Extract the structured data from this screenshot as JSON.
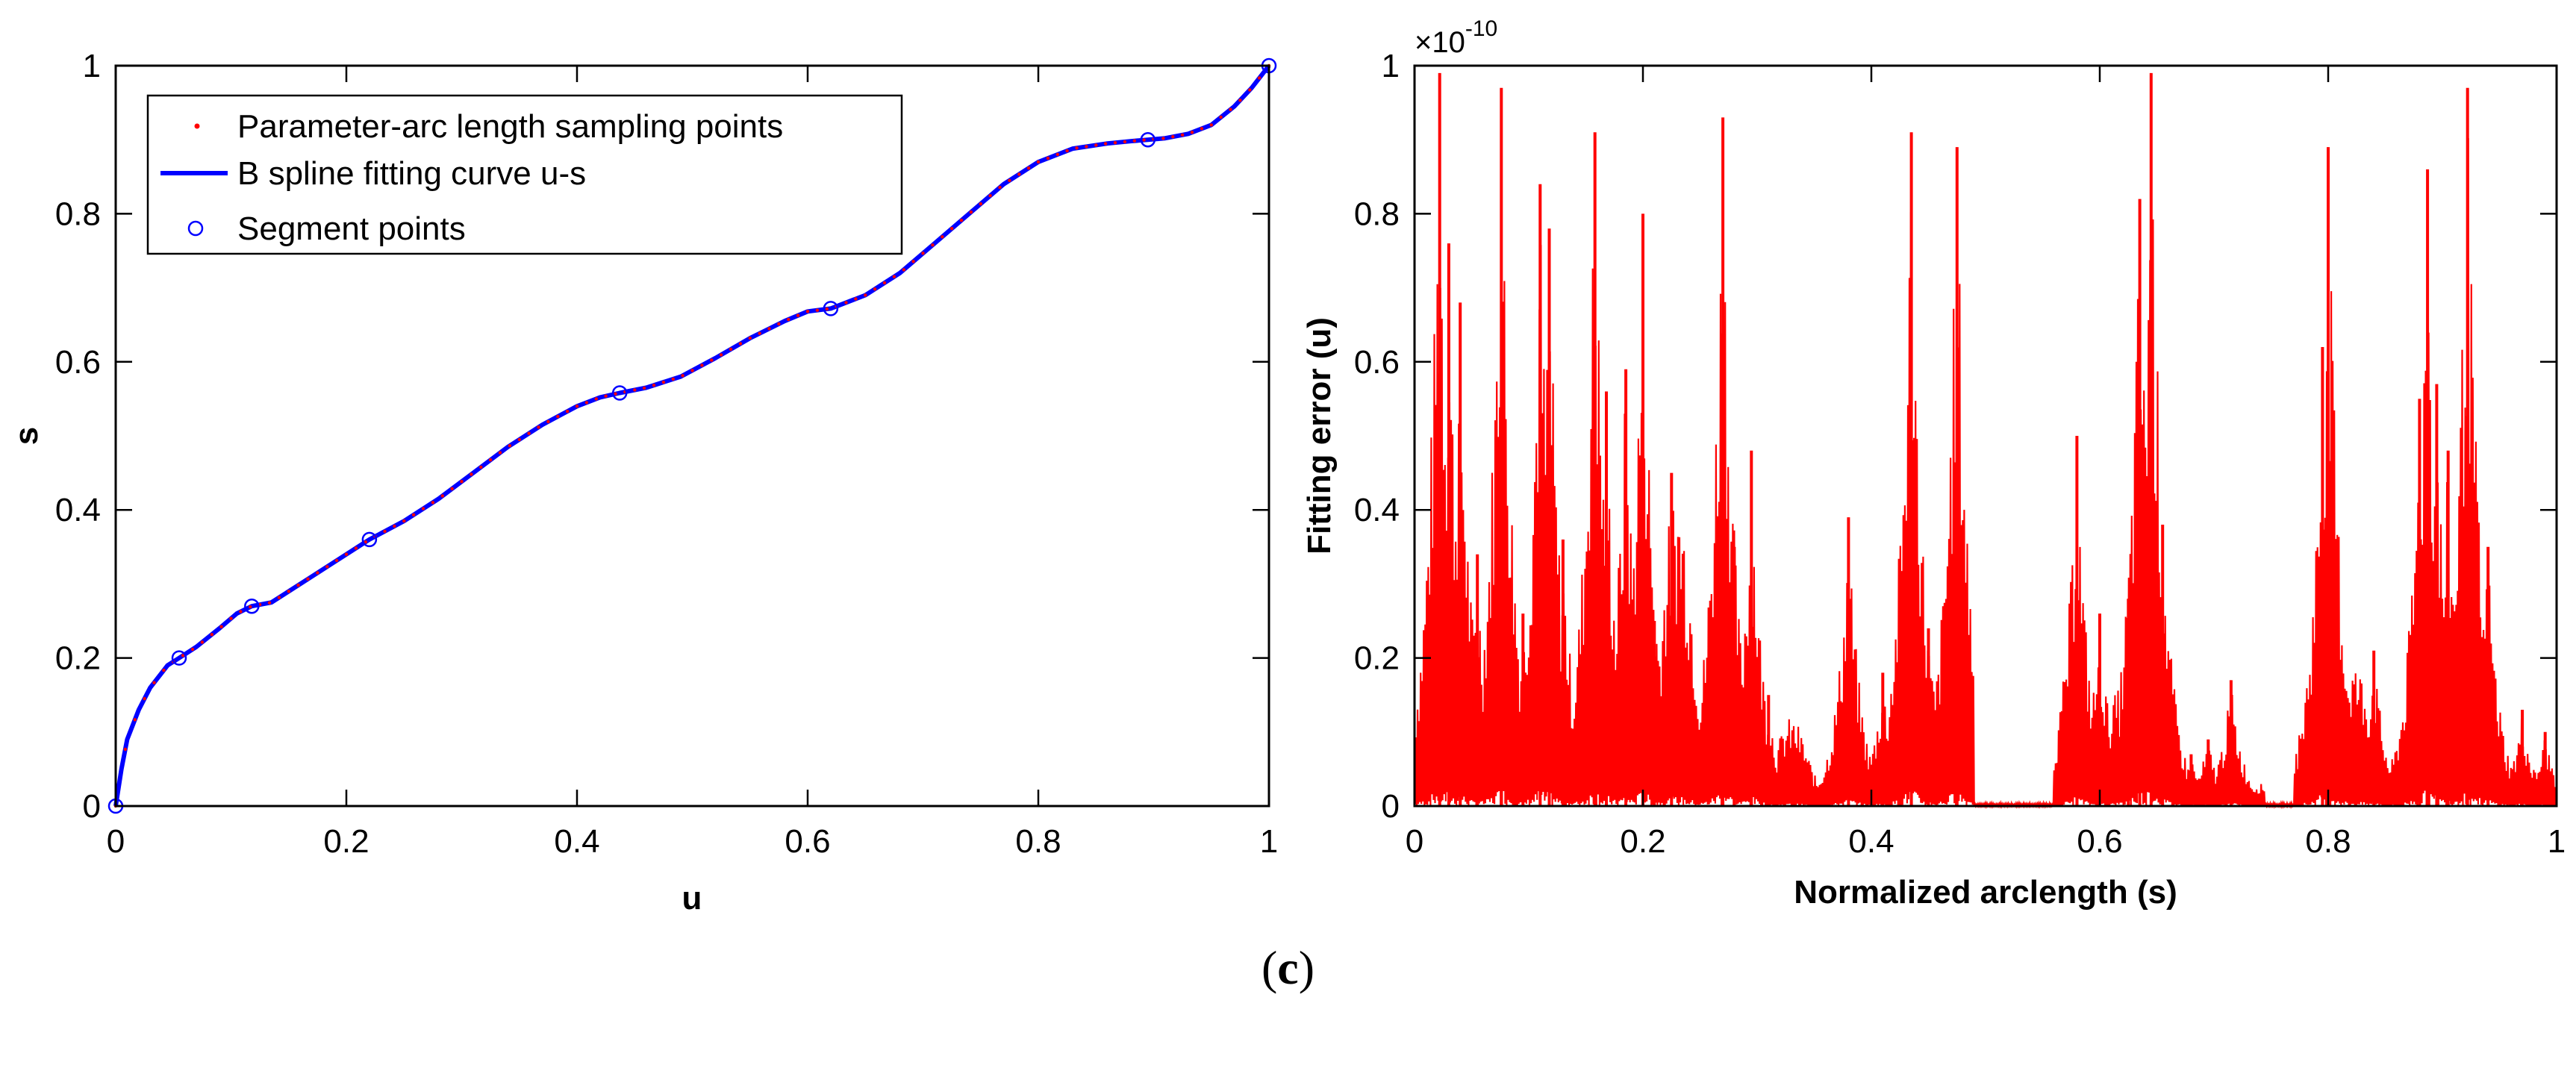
{
  "caption": {
    "open": "(",
    "label": "c",
    "close": ")"
  },
  "colors": {
    "sampling": "#ff0000",
    "curve": "#0000ff",
    "segment": "#0000ff",
    "error": "#ff0000",
    "axis": "#000000"
  },
  "chart_data": [
    {
      "type": "line",
      "title": "",
      "xlabel": "u",
      "ylabel": "s",
      "xlim": [
        0,
        1
      ],
      "ylim": [
        0,
        1
      ],
      "xticks": [
        0,
        0.2,
        0.4,
        0.6,
        0.8,
        1
      ],
      "yticks": [
        0,
        0.2,
        0.4,
        0.6,
        0.8,
        1
      ],
      "xtick_labels": [
        "0",
        "0.2",
        "0.4",
        "0.6",
        "0.8",
        "1"
      ],
      "ytick_labels": [
        "0",
        "0.2",
        "0.4",
        "0.6",
        "0.8",
        "1"
      ],
      "legend": {
        "placement": "top-left",
        "entries": [
          "Parameter-arc length sampling points",
          "B spline fitting curve u-s",
          "Segment points"
        ]
      },
      "series": [
        {
          "name": "B spline fitting curve u-s",
          "style": "line",
          "x": [
            0,
            0.005,
            0.01,
            0.02,
            0.03,
            0.045,
            0.055,
            0.07,
            0.09,
            0.105,
            0.118,
            0.135,
            0.15,
            0.17,
            0.19,
            0.21,
            0.22,
            0.25,
            0.28,
            0.31,
            0.34,
            0.37,
            0.4,
            0.42,
            0.437,
            0.46,
            0.49,
            0.52,
            0.55,
            0.58,
            0.6,
            0.62,
            0.65,
            0.68,
            0.71,
            0.74,
            0.77,
            0.8,
            0.83,
            0.86,
            0.88,
            0.895,
            0.91,
            0.93,
            0.95,
            0.97,
            0.985,
            1.0
          ],
          "y": [
            0,
            0.05,
            0.09,
            0.13,
            0.16,
            0.19,
            0.2,
            0.215,
            0.24,
            0.26,
            0.27,
            0.275,
            0.29,
            0.31,
            0.33,
            0.35,
            0.36,
            0.385,
            0.415,
            0.45,
            0.485,
            0.515,
            0.54,
            0.552,
            0.558,
            0.565,
            0.58,
            0.605,
            0.632,
            0.655,
            0.668,
            0.672,
            0.69,
            0.72,
            0.76,
            0.8,
            0.84,
            0.87,
            0.888,
            0.895,
            0.898,
            0.9,
            0.902,
            0.908,
            0.92,
            0.945,
            0.97,
            1.0
          ]
        },
        {
          "name": "Segment points",
          "style": "marker-circle",
          "x": [
            0,
            0.055,
            0.118,
            0.22,
            0.437,
            0.62,
            0.895,
            1.0
          ],
          "y": [
            0,
            0.2,
            0.27,
            0.36,
            0.558,
            0.672,
            0.9,
            1.0
          ]
        }
      ]
    },
    {
      "type": "area",
      "title": "",
      "xlabel": "Normalized arclength (s)",
      "ylabel": "Fitting error (u)",
      "y_exponent_label": "×10",
      "y_exponent_power": "-10",
      "xlim": [
        0,
        1
      ],
      "ylim": [
        0,
        1
      ],
      "xticks": [
        0,
        0.2,
        0.4,
        0.6,
        0.8,
        1
      ],
      "yticks": [
        0,
        0.2,
        0.4,
        0.6,
        0.8,
        1
      ],
      "xtick_labels": [
        "0",
        "0.2",
        "0.4",
        "0.6",
        "0.8",
        "1"
      ],
      "ytick_labels": [
        "0",
        "0.2",
        "0.4",
        "0.6",
        "0.8",
        "1"
      ],
      "series": [
        {
          "name": "Fitting error",
          "spikes": [
            {
              "x": 0.022,
              "y": 0.99
            },
            {
              "x": 0.03,
              "y": 0.76
            },
            {
              "x": 0.04,
              "y": 0.68
            },
            {
              "x": 0.055,
              "y": 0.34
            },
            {
              "x": 0.076,
              "y": 0.97
            },
            {
              "x": 0.095,
              "y": 0.26
            },
            {
              "x": 0.11,
              "y": 0.84
            },
            {
              "x": 0.118,
              "y": 0.78
            },
            {
              "x": 0.13,
              "y": 0.36
            },
            {
              "x": 0.158,
              "y": 0.91
            },
            {
              "x": 0.168,
              "y": 0.56
            },
            {
              "x": 0.185,
              "y": 0.59
            },
            {
              "x": 0.2,
              "y": 0.8
            },
            {
              "x": 0.21,
              "y": 0.25
            },
            {
              "x": 0.225,
              "y": 0.45
            },
            {
              "x": 0.27,
              "y": 0.93
            },
            {
              "x": 0.28,
              "y": 0.35
            },
            {
              "x": 0.295,
              "y": 0.48
            },
            {
              "x": 0.31,
              "y": 0.15
            },
            {
              "x": 0.38,
              "y": 0.39
            },
            {
              "x": 0.41,
              "y": 0.18
            },
            {
              "x": 0.435,
              "y": 0.91
            },
            {
              "x": 0.45,
              "y": 0.24
            },
            {
              "x": 0.475,
              "y": 0.89
            },
            {
              "x": 0.58,
              "y": 0.5
            },
            {
              "x": 0.6,
              "y": 0.26
            },
            {
              "x": 0.625,
              "y": 0.28
            },
            {
              "x": 0.635,
              "y": 0.82
            },
            {
              "x": 0.645,
              "y": 0.99
            },
            {
              "x": 0.655,
              "y": 0.38
            },
            {
              "x": 0.68,
              "y": 0.07
            },
            {
              "x": 0.695,
              "y": 0.09
            },
            {
              "x": 0.715,
              "y": 0.17
            },
            {
              "x": 0.795,
              "y": 0.62
            },
            {
              "x": 0.8,
              "y": 0.89
            },
            {
              "x": 0.84,
              "y": 0.21
            },
            {
              "x": 0.88,
              "y": 0.55
            },
            {
              "x": 0.887,
              "y": 0.86
            },
            {
              "x": 0.895,
              "y": 0.57
            },
            {
              "x": 0.905,
              "y": 0.48
            },
            {
              "x": 0.922,
              "y": 0.97
            },
            {
              "x": 0.94,
              "y": 0.35
            },
            {
              "x": 0.97,
              "y": 0.13
            },
            {
              "x": 0.99,
              "y": 0.1
            }
          ]
        }
      ]
    }
  ]
}
